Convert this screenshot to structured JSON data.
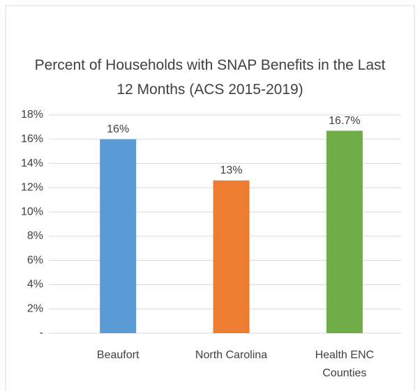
{
  "chart_data": {
    "type": "bar",
    "title": "Percent of Households with SNAP Benefits in the Last 12 Months (ACS 2015-2019)",
    "categories": [
      "Beaufort",
      "North Carolina",
      "Health ENC Counties"
    ],
    "values": [
      16,
      12.6,
      16.7
    ],
    "value_labels": [
      "16%",
      "13%",
      "16.7%"
    ],
    "colors": [
      "#5b9bd5",
      "#ed7d31",
      "#70ad47"
    ],
    "ylim": [
      0,
      18
    ],
    "yticks": [
      {
        "value": 0,
        "label": "-"
      },
      {
        "value": 2,
        "label": "2%"
      },
      {
        "value": 4,
        "label": "4%"
      },
      {
        "value": 6,
        "label": "6%"
      },
      {
        "value": 8,
        "label": "8%"
      },
      {
        "value": 10,
        "label": "10%"
      },
      {
        "value": 12,
        "label": "12%"
      },
      {
        "value": 14,
        "label": "14%"
      },
      {
        "value": 16,
        "label": "16%"
      },
      {
        "value": 18,
        "label": "18%"
      }
    ],
    "grid": true
  }
}
